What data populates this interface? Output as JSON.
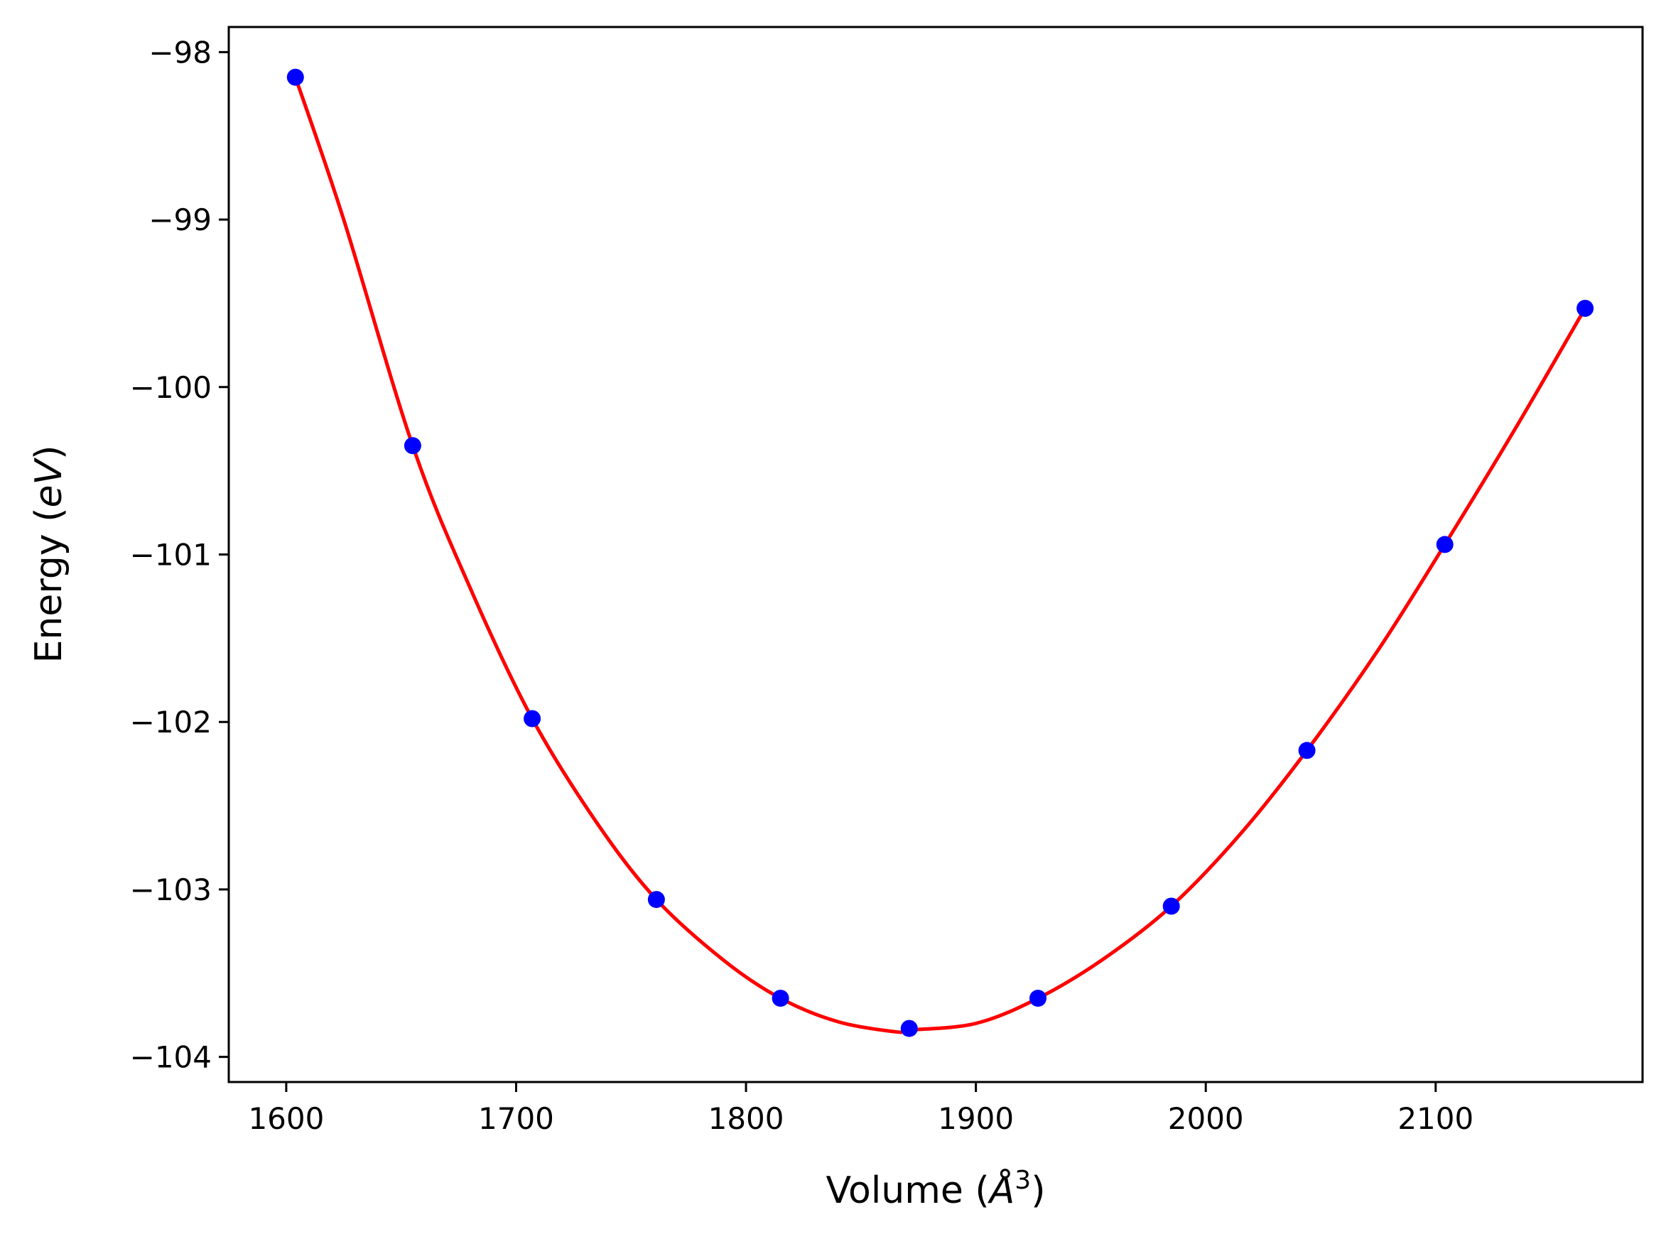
{
  "chart_data": {
    "type": "scatter",
    "title": "",
    "xlabel_parts": {
      "prefix": "Volume (",
      "symbol": "Å",
      "superscript": "3",
      "suffix": ")"
    },
    "ylabel_parts": {
      "prefix": "Energy (",
      "symbol": "eV",
      "suffix": ")"
    },
    "xlim": [
      1575,
      2190
    ],
    "ylim": [
      -104.15,
      -97.85
    ],
    "x_ticks": [
      1600,
      1700,
      1800,
      1900,
      2000,
      2100
    ],
    "x_tick_labels": [
      "1600",
      "1700",
      "1800",
      "1900",
      "2000",
      "2100"
    ],
    "y_ticks": [
      -98,
      -99,
      -100,
      -101,
      -102,
      -103,
      -104
    ],
    "y_tick_labels": [
      "−98",
      "−99",
      "−100",
      "−101",
      "−102",
      "−103",
      "−104"
    ],
    "grid": false,
    "legend": "none",
    "series": [
      {
        "kind": "points",
        "color": "#0000ff",
        "x": [
          1604,
          1655,
          1707,
          1761,
          1815,
          1871,
          1927,
          1985,
          2044,
          2104,
          2165
        ],
        "y": [
          -98.15,
          -100.35,
          -101.98,
          -103.06,
          -103.65,
          -103.83,
          -103.65,
          -103.1,
          -102.17,
          -100.94,
          -99.53
        ]
      },
      {
        "kind": "fit-curve",
        "color": "#ff0000",
        "x": [
          1604,
          1625,
          1655,
          1680,
          1707,
          1735,
          1761,
          1790,
          1815,
          1840,
          1865,
          1871,
          1900,
          1927,
          1955,
          1985,
          2015,
          2044,
          2075,
          2104,
          2135,
          2165
        ],
        "y": [
          -98.15,
          -99.0,
          -100.35,
          -101.2,
          -101.98,
          -102.6,
          -103.06,
          -103.42,
          -103.65,
          -103.79,
          -103.85,
          -103.84,
          -103.8,
          -103.65,
          -103.42,
          -103.1,
          -102.67,
          -102.17,
          -101.57,
          -100.94,
          -100.24,
          -99.53
        ]
      }
    ]
  }
}
